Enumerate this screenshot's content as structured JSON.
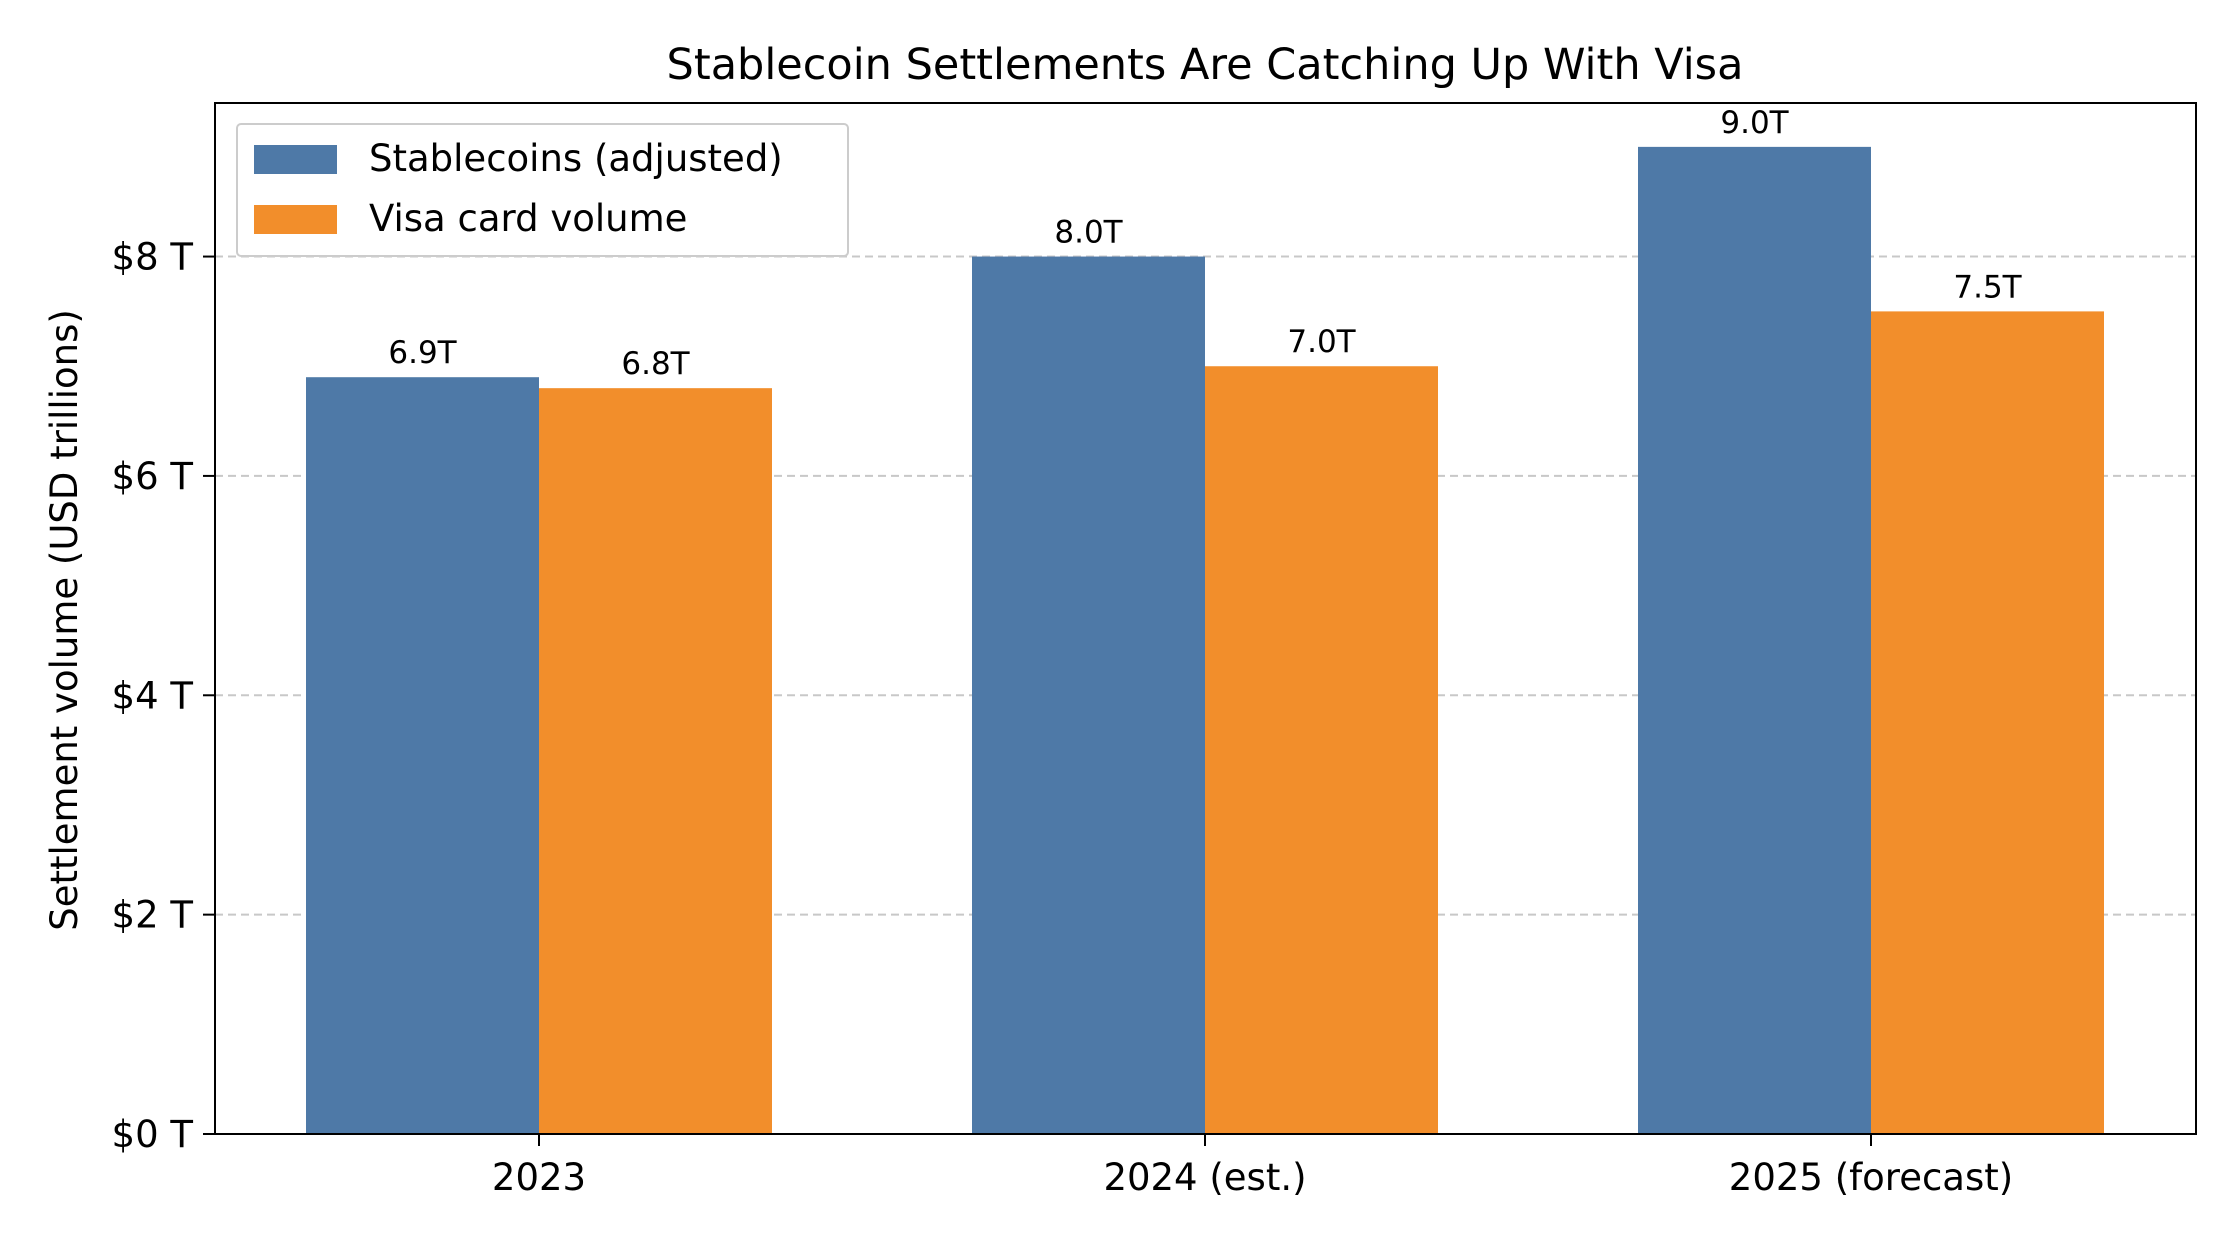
{
  "chart_data": {
    "type": "bar",
    "title": "Stablecoin Settlements Are Catching Up With Visa",
    "xlabel": "",
    "ylabel": "Settlement volume (USD trillions)",
    "categories": [
      "2023",
      "2024 (est.)",
      "2025 (forecast)"
    ],
    "series": [
      {
        "name": "Stablecoins (adjusted)",
        "color": "#4e79a7",
        "values": [
          6.9,
          8.0,
          9.0
        ],
        "labels": [
          "6.9T",
          "8.0T",
          "9.0T"
        ]
      },
      {
        "name": "Visa card volume",
        "color": "#f28e2b",
        "values": [
          6.8,
          7.0,
          7.5
        ],
        "labels": [
          "6.8T",
          "7.0T",
          "7.5T"
        ]
      }
    ],
    "ylim": [
      0,
      9.4
    ],
    "yticks": [
      0,
      2,
      4,
      6,
      8
    ],
    "ytick_labels": [
      "$0 T",
      "$2 T",
      "$4 T",
      "$6 T",
      "$8 T"
    ],
    "grid": "y-dashed",
    "legend_position": "top-left"
  }
}
